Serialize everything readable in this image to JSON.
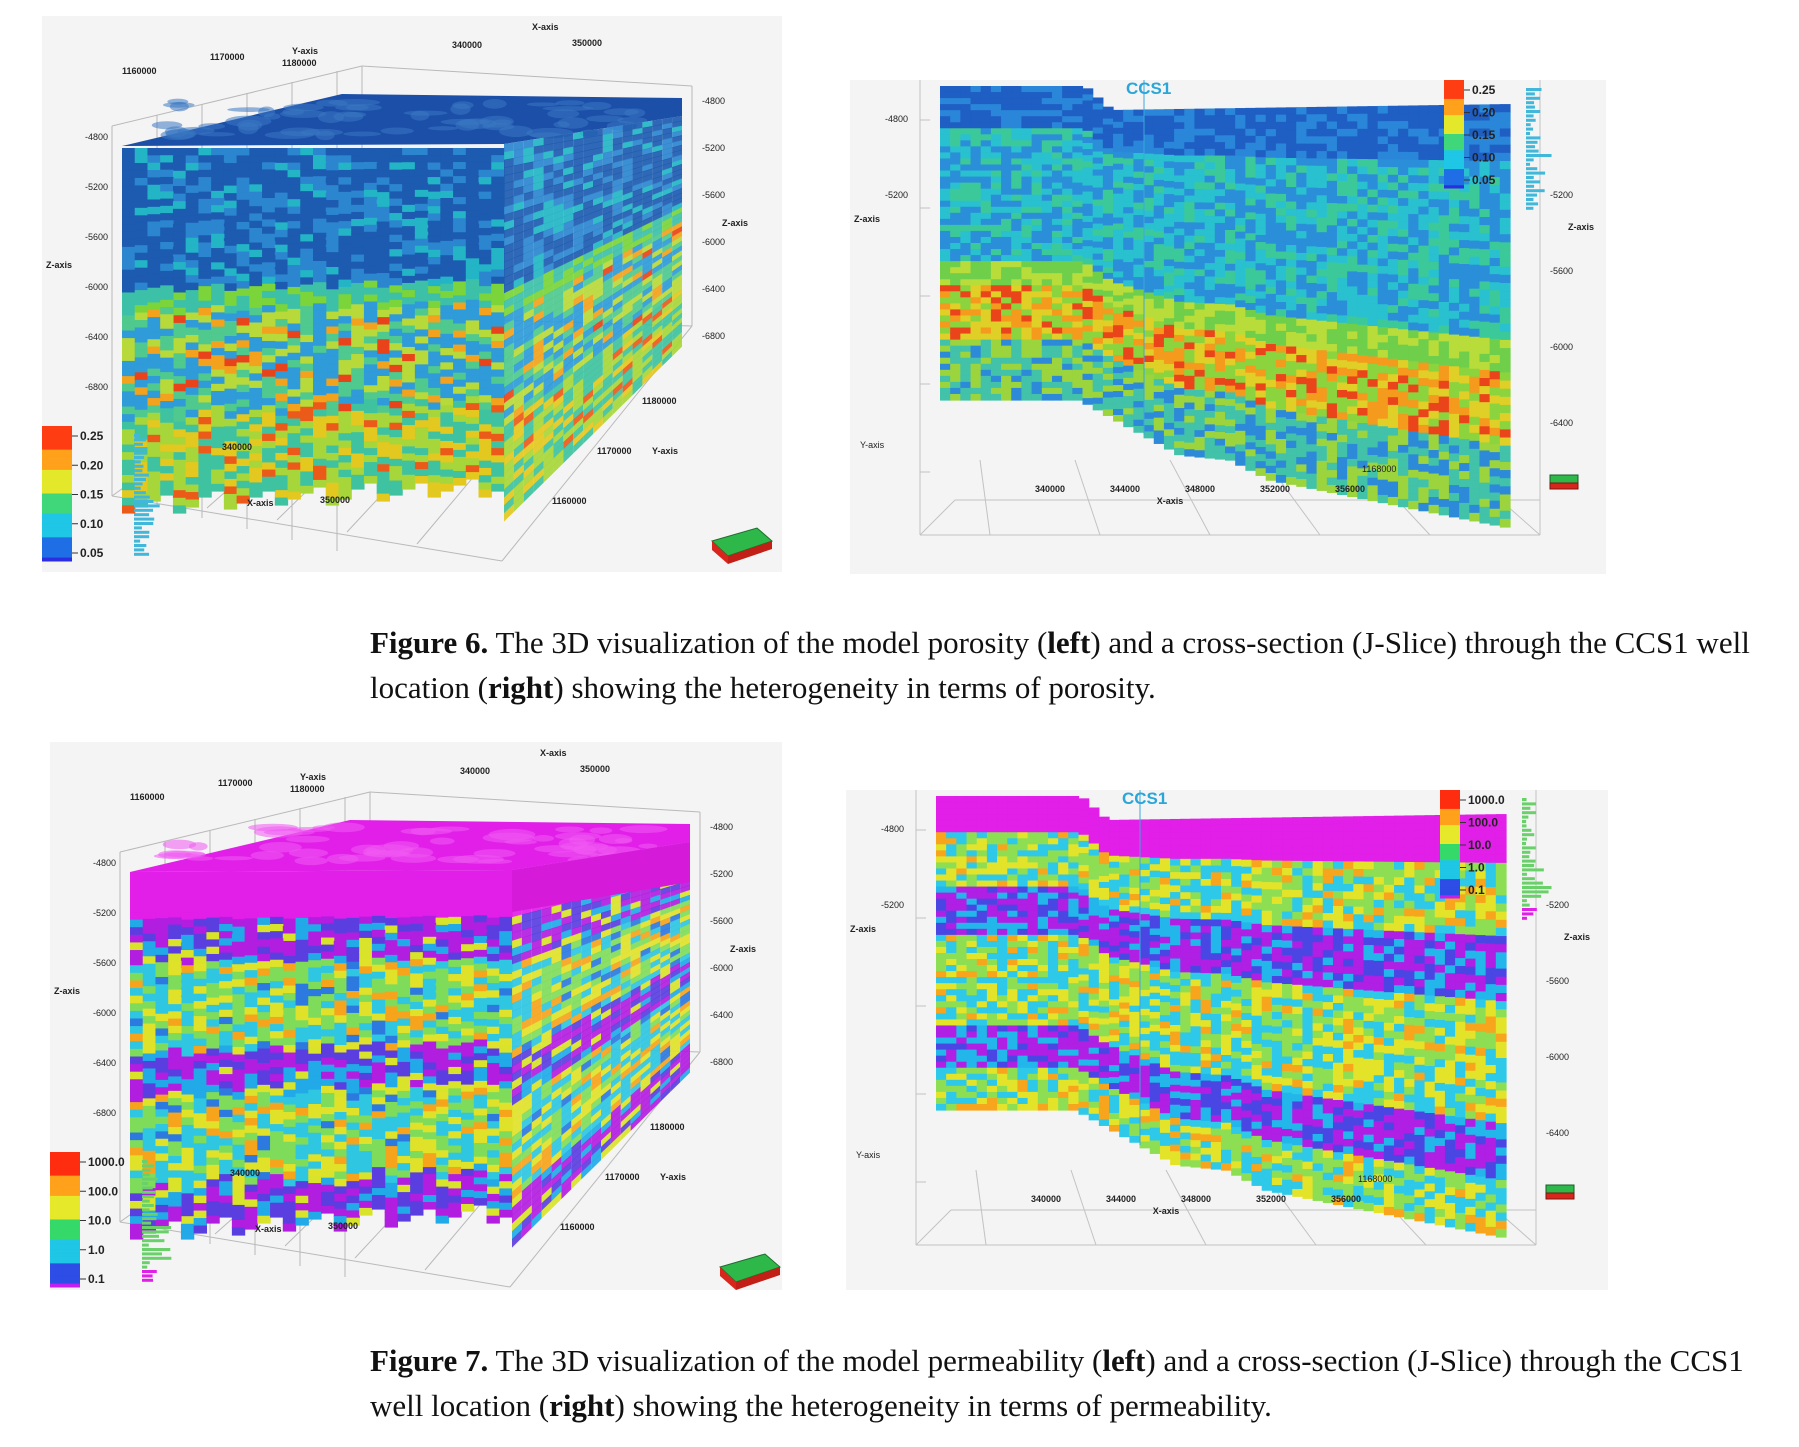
{
  "figures": [
    {
      "id": "fig6",
      "property": "porosity",
      "caption": {
        "label": "Figure 6.",
        "text_1": " The 3D visualization of the model porosity (",
        "left": "left",
        "text_2": ") and a cross-section (J-Slice) through the CCS1 well location (",
        "right": "right",
        "text_3": ") showing the heterogeneity in terms of porosity."
      },
      "left_panel": {
        "x_axis_title": "X-axis",
        "y_axis_title": "Y-axis",
        "z_axis_title": "Z-axis",
        "x_ticks_top": [
          "340000",
          "350000"
        ],
        "y_ticks_top": [
          "1160000",
          "1170000",
          "1180000"
        ],
        "z_ticks_left": [
          "-4800",
          "-5200",
          "-5600",
          "-6000",
          "-6400",
          "-6800"
        ],
        "z_ticks_right": [
          "-4800",
          "-5200",
          "-5600",
          "-6000",
          "-6400",
          "-6800"
        ],
        "x_ticks_bottom": [
          "340000",
          "350000"
        ],
        "y_ticks_bottom": [
          "1180000",
          "1170000",
          "1160000"
        ],
        "colorbar": [
          "0.25",
          "0.20",
          "0.15",
          "0.10",
          "0.05"
        ]
      },
      "right_panel": {
        "well_label": "CCS1",
        "z_ticks_left": [
          "-4800",
          "-5200"
        ],
        "z_ticks_right": [
          "-5200",
          "-5600",
          "-6000",
          "-6400"
        ],
        "x_ticks": [
          "340000",
          "344000",
          "348000",
          "352000",
          "356000"
        ],
        "x_axis_title": "X-axis",
        "y_axis_title": "Y-axis",
        "z_axis_title": "Z-axis",
        "y_tick": "1168000",
        "colorbar": [
          "0.25",
          "0.20",
          "0.15",
          "0.10",
          "0.05"
        ]
      },
      "colors": {
        "top": "#1b4fa8",
        "low": "#2f8fd6",
        "high": "#9ad62a",
        "hot": "#e83a1a",
        "extreme": "#ff6600"
      }
    },
    {
      "id": "fig7",
      "property": "permeability",
      "caption": {
        "label": "Figure 7.",
        "text_1": " The 3D visualization of the model permeability (",
        "left": "left",
        "text_2": ") and a cross-section (J-Slice) through the CCS1 well location (",
        "right": "right",
        "text_3": ") showing the heterogeneity in terms of permeability."
      },
      "left_panel": {
        "x_axis_title": "X-axis",
        "y_axis_title": "Y-axis",
        "z_axis_title": "Z-axis",
        "x_ticks_top": [
          "340000",
          "350000"
        ],
        "y_ticks_top": [
          "1160000",
          "1170000",
          "1180000"
        ],
        "z_ticks_left": [
          "-4800",
          "-5200",
          "-5600",
          "-6000",
          "-6400",
          "-6800"
        ],
        "z_ticks_right": [
          "-4800",
          "-5200",
          "-5600",
          "-6000",
          "-6400",
          "-6800"
        ],
        "x_ticks_bottom": [
          "340000",
          "350000"
        ],
        "y_ticks_bottom": [
          "1180000",
          "1170000",
          "1160000"
        ],
        "colorbar": [
          "1000.0",
          "100.0",
          "10.0",
          "1.0",
          "0.1"
        ]
      },
      "right_panel": {
        "well_label": "CCS1",
        "z_ticks_left": [
          "-4800",
          "-5200"
        ],
        "z_ticks_right": [
          "-5200",
          "-5600",
          "-6000",
          "-6400"
        ],
        "x_ticks": [
          "340000",
          "344000",
          "348000",
          "352000",
          "356000"
        ],
        "x_axis_title": "X-axis",
        "y_axis_title": "Y-axis",
        "z_axis_title": "Z-axis",
        "y_tick": "1168000",
        "colorbar": [
          "1000.0",
          "100.0",
          "10.0",
          "1.0",
          "0.1"
        ]
      },
      "colors": {
        "top": "#e11fe8",
        "low": "#1fb8e6",
        "high": "#d6e32a",
        "hot": "#ff9a1a",
        "extreme": "#9a1fe0"
      }
    }
  ]
}
